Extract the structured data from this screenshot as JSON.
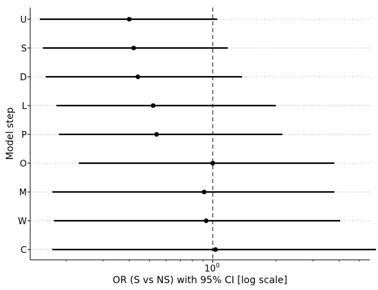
{
  "chart_data": {
    "type": "forest",
    "xlabel": "OR (S vs NS) with 95% CI [log scale]",
    "ylabel": "Model step",
    "x_scale": "log",
    "xlim": [
      0.135,
      5.6
    ],
    "x_ticks": [
      {
        "value": 1,
        "label": "10",
        "exponent": "0"
      }
    ],
    "reference_line": {
      "x": 1,
      "style": "dashed",
      "color": "#555555"
    },
    "grid": {
      "horizontal": true,
      "style": "dotted",
      "color": "#bbbbbb"
    },
    "categories": [
      "U",
      "S",
      "D",
      "L",
      "P",
      "O",
      "M",
      "W",
      "C"
    ],
    "or": [
      0.4,
      0.42,
      0.44,
      0.52,
      0.54,
      1.0,
      0.91,
      0.93,
      1.03
    ],
    "ci_lo": [
      0.15,
      0.155,
      0.16,
      0.18,
      0.185,
      0.23,
      0.172,
      0.175,
      0.172
    ],
    "ci_hi": [
      1.05,
      1.18,
      1.38,
      2.0,
      2.15,
      3.8,
      3.8,
      4.05,
      6.0
    ],
    "marker_color": "#000000",
    "line_color": "#000000"
  }
}
